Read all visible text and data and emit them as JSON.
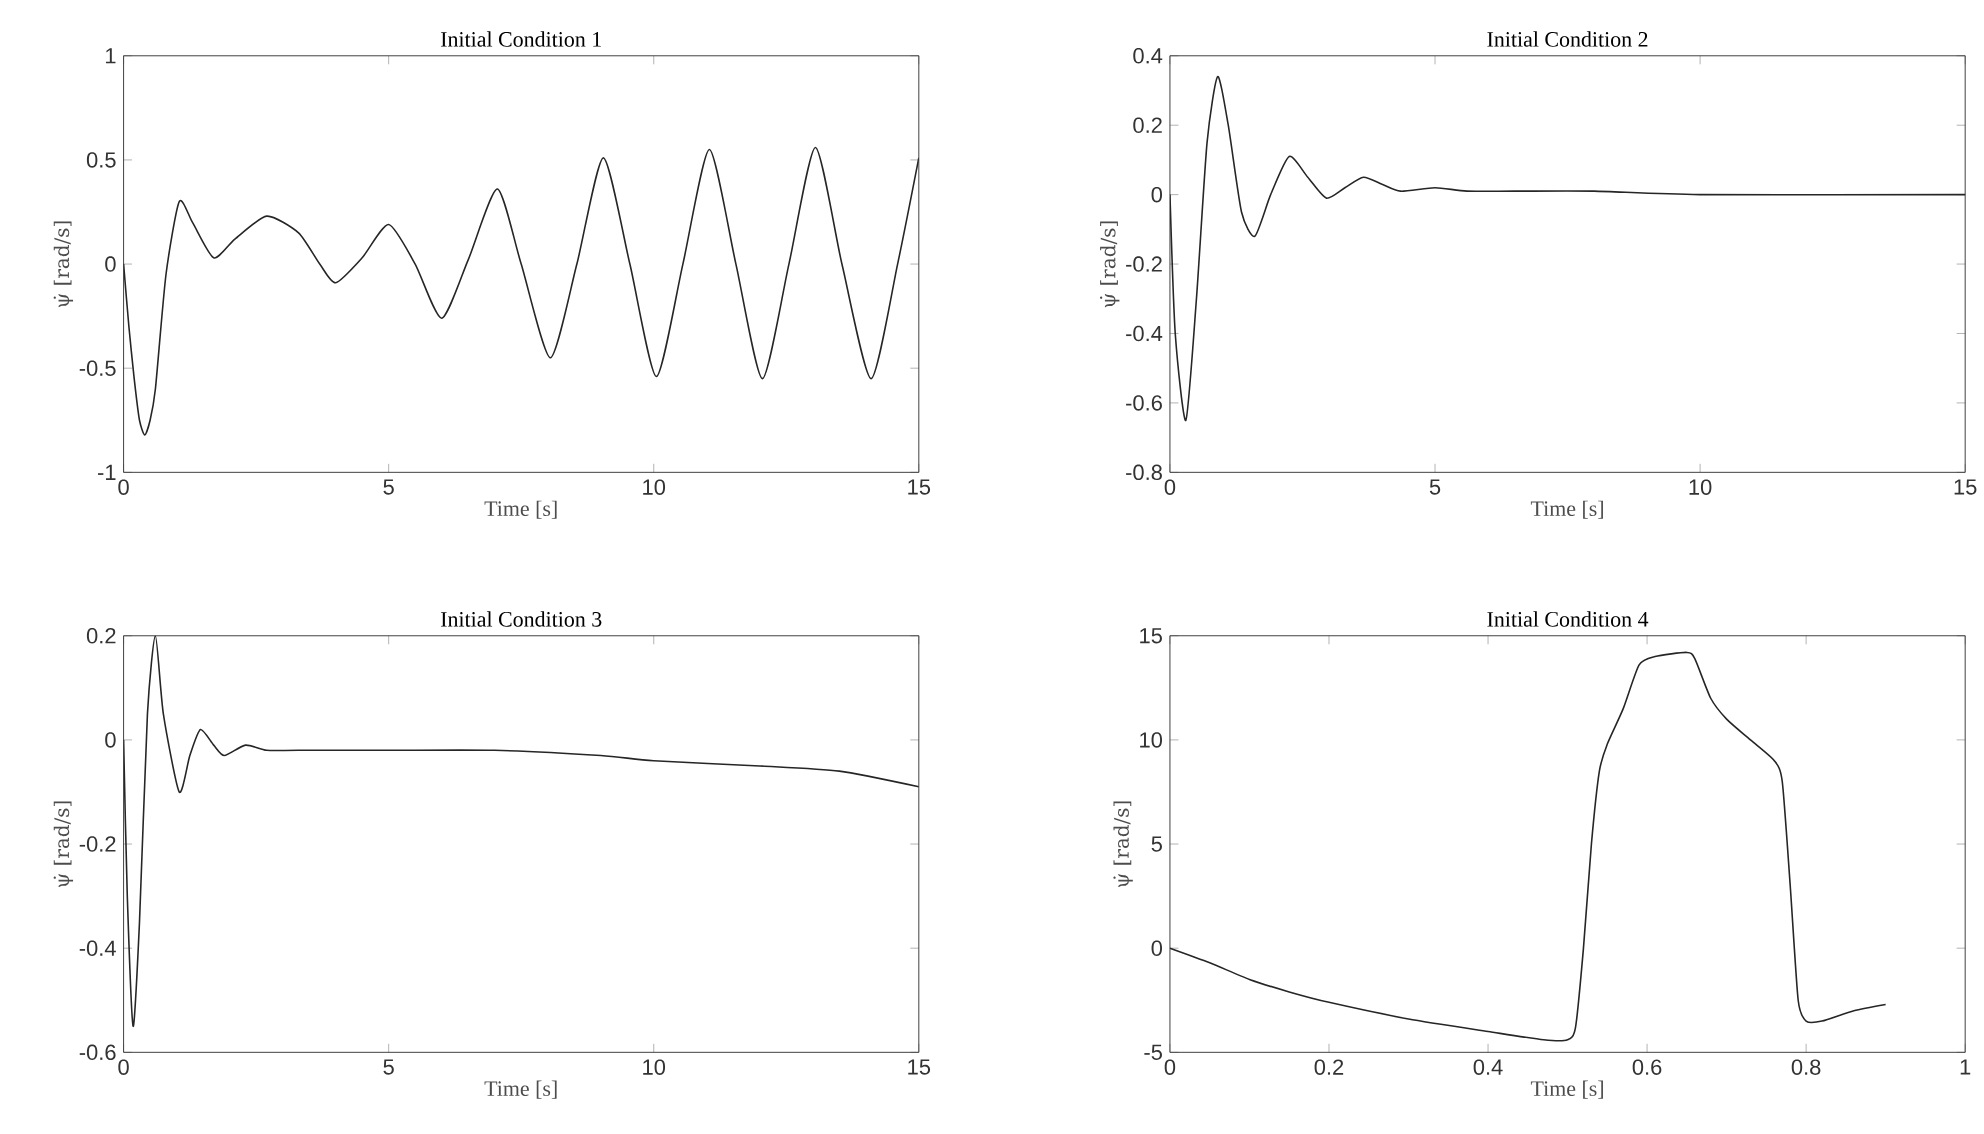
{
  "chart_data": [
    {
      "type": "line",
      "title": "Initial Condition 1",
      "xlabel": "Time [s]",
      "ylabel": "ψ̇ [rad/s]",
      "x": [
        0,
        0.1,
        0.2,
        0.3,
        0.4,
        0.5,
        0.6,
        0.8,
        1.05,
        1.3,
        1.7,
        2.1,
        2.7,
        3.3,
        3.7,
        4.0,
        4.5,
        5.0,
        5.5,
        6.0,
        6.5,
        7.05,
        7.5,
        8.05,
        8.55,
        9.05,
        9.55,
        10.05,
        10.55,
        11.05,
        11.55,
        12.05,
        12.55,
        13.05,
        13.55,
        14.1,
        14.6,
        15
      ],
      "series": [
        {
          "color": "#262626",
          "values": [
            0,
            -0.3,
            -0.55,
            -0.75,
            -0.82,
            -0.75,
            -0.6,
            -0.05,
            0.3,
            0.2,
            0.03,
            0.12,
            0.23,
            0.15,
            0.0,
            -0.09,
            0.03,
            0.19,
            0.0,
            -0.26,
            0.02,
            0.36,
            0.0,
            -0.45,
            0.0,
            0.51,
            0.0,
            -0.54,
            0.0,
            0.55,
            0.0,
            -0.55,
            0.0,
            0.56,
            0.0,
            -0.55,
            0.0,
            0.51
          ]
        }
      ],
      "xlim": [
        0,
        15
      ],
      "ylim": [
        -1,
        1
      ],
      "xticks": [
        0,
        5,
        10,
        15
      ],
      "yticks": [
        -1,
        -0.5,
        0,
        0.5,
        1
      ]
    },
    {
      "type": "line",
      "title": "Initial Condition 2",
      "xlabel": "Time [s]",
      "ylabel": "ψ̇ [rad/s]",
      "x": [
        0,
        0.1,
        0.3,
        0.5,
        0.7,
        0.9,
        1.1,
        1.35,
        1.6,
        1.9,
        2.25,
        2.6,
        2.95,
        3.3,
        3.65,
        4.0,
        4.35,
        5.0,
        5.6,
        6.5,
        8,
        10,
        15
      ],
      "series": [
        {
          "color": "#262626",
          "values": [
            0,
            -0.4,
            -0.65,
            -0.3,
            0.15,
            0.34,
            0.2,
            -0.05,
            -0.12,
            0.0,
            0.11,
            0.05,
            -0.01,
            0.02,
            0.05,
            0.03,
            0.01,
            0.02,
            0.01,
            0.01,
            0.01,
            0,
            0
          ]
        }
      ],
      "xlim": [
        0,
        15
      ],
      "ylim": [
        -0.8,
        0.4
      ],
      "xticks": [
        0,
        5,
        10,
        15
      ],
      "yticks": [
        -0.8,
        -0.6,
        -0.4,
        -0.2,
        0,
        0.2,
        0.4
      ]
    },
    {
      "type": "line",
      "title": "Initial Condition 3",
      "xlabel": "Time [s]",
      "ylabel": "ψ̇ [rad/s]",
      "x": [
        0,
        0.07,
        0.18,
        0.3,
        0.45,
        0.6,
        0.75,
        1.05,
        1.25,
        1.45,
        1.7,
        1.9,
        2.3,
        2.7,
        3.3,
        5,
        7,
        9,
        10,
        12,
        13.5,
        15
      ],
      "series": [
        {
          "color": "#262626",
          "values": [
            0,
            -0.3,
            -0.55,
            -0.35,
            0.05,
            0.2,
            0.05,
            -0.1,
            -0.03,
            0.02,
            -0.01,
            -0.03,
            -0.01,
            -0.02,
            -0.02,
            -0.02,
            -0.02,
            -0.03,
            -0.04,
            -0.05,
            -0.06,
            -0.09
          ]
        }
      ],
      "xlim": [
        0,
        15
      ],
      "ylim": [
        -0.6,
        0.2
      ],
      "xticks": [
        0,
        5,
        10,
        15
      ],
      "yticks": [
        -0.6,
        -0.4,
        -0.2,
        0,
        0.2
      ]
    },
    {
      "type": "line",
      "title": "Initial Condition 4",
      "xlabel": "Time [s]",
      "ylabel": "ψ̇ [rad/s]",
      "x": [
        0,
        0.05,
        0.1,
        0.15,
        0.2,
        0.3,
        0.4,
        0.47,
        0.5,
        0.51,
        0.52,
        0.53,
        0.54,
        0.55,
        0.57,
        0.59,
        0.61,
        0.65,
        0.66,
        0.68,
        0.7,
        0.73,
        0.76,
        0.77,
        0.78,
        0.79,
        0.8,
        0.82,
        0.86,
        0.9
      ],
      "series": [
        {
          "color": "#262626",
          "values": [
            0,
            -0.7,
            -1.5,
            -2.1,
            -2.6,
            -3.4,
            -4.0,
            -4.4,
            -4.4,
            -3.8,
            0,
            5,
            8.5,
            9.8,
            11.5,
            13.6,
            14.0,
            14.2,
            13.9,
            12,
            11,
            10,
            9,
            8,
            3,
            -2.5,
            -3.5,
            -3.5,
            -3.0,
            -2.7
          ]
        }
      ],
      "xlim": [
        0,
        1
      ],
      "ylim": [
        -5,
        15
      ],
      "xticks": [
        0,
        0.2,
        0.4,
        0.6,
        0.8,
        1
      ],
      "yticks": [
        -5,
        0,
        5,
        10,
        15
      ]
    }
  ]
}
